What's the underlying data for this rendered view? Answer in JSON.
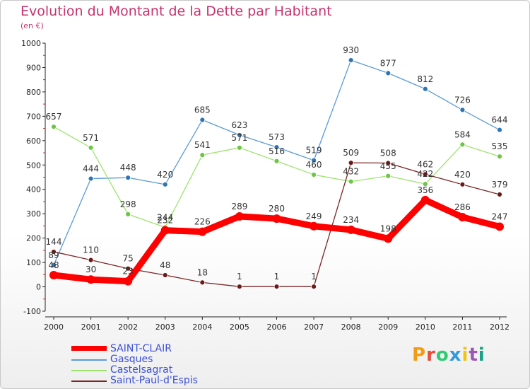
{
  "title": "Evolution du Montant de la Dette par Habitant",
  "subtitle": "(en €)",
  "logo": {
    "text": "Proxiti",
    "colors": [
      "#f39c12",
      "#e74c3c",
      "#2ecc71",
      "#3498db",
      "#f1c40f",
      "#9b59b6",
      "#16a085"
    ]
  },
  "chart_data": {
    "type": "line",
    "title": "Evolution du Montant de la Dette par Habitant",
    "subtitle": "(en €)",
    "categories": [
      "2000",
      "2001",
      "2002",
      "2003",
      "2004",
      "2005",
      "2006",
      "2007",
      "2008",
      "2009",
      "2010",
      "2011",
      "2012"
    ],
    "yticks": [
      -100,
      0,
      100,
      200,
      300,
      400,
      500,
      600,
      700,
      800,
      900,
      1000
    ],
    "ylim": [
      -100,
      1000
    ],
    "grid": false,
    "legend_position": "bottom-left",
    "series": [
      {
        "name": "SAINT-CLAIR",
        "color": "#ff0000",
        "thick": true,
        "values": [
          48,
          30,
          23,
          232,
          226,
          289,
          280,
          249,
          234,
          198,
          356,
          286,
          247
        ]
      },
      {
        "name": "Gasques",
        "color": "#5b9bd5",
        "marker": "#2e75b6",
        "values": [
          89,
          444,
          448,
          420,
          685,
          623,
          573,
          519,
          930,
          877,
          812,
          726,
          644
        ]
      },
      {
        "name": "Castelsagrat",
        "color": "#9ee36e",
        "marker": "#6cc644",
        "values": [
          657,
          571,
          298,
          244,
          541,
          571,
          516,
          460,
          432,
          455,
          422,
          584,
          535
        ]
      },
      {
        "name": "Saint-Paul-d'Espis",
        "color": "#7b2424",
        "marker": "#6b1a1a",
        "values": [
          144,
          110,
          75,
          48,
          18,
          1,
          1,
          1,
          509,
          508,
          462,
          420,
          379
        ]
      }
    ]
  }
}
